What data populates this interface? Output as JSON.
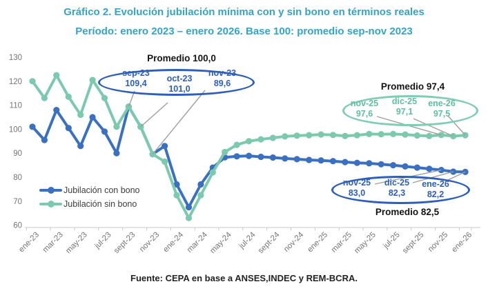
{
  "title": "Gráfico 2. Evolución jubilación mínima con y sin bono en términos reales",
  "subtitle": "Período: enero 2023 – enero 2026. Base 100: promedio sep-nov 2023",
  "source": "Fuente: CEPA en base a ANSES,INDEC y REM-BCRA.",
  "colors": {
    "title": "#35A3C8",
    "con_bono": "#3A70C2",
    "sin_bono": "#7BCAAE",
    "annotation_blue": "#2D5FBA",
    "annotation_green": "#5FBEA1",
    "ellipse_green": "#7FCDB2",
    "axis_text": "#757575",
    "axis_line": "#C9C9C9",
    "leader_line": "#9E9E9E"
  },
  "annotations": {
    "base_period": {
      "title": "Promedio 100,0",
      "points": [
        {
          "label": "sep-23",
          "value": "109,4"
        },
        {
          "label": "oct-23",
          "value": "101,0"
        },
        {
          "label": "nov-23",
          "value": "89,6"
        }
      ]
    },
    "sin_bono_end": {
      "title": "Promedio 97,4",
      "points": [
        {
          "label": "nov-25",
          "value": "97,6"
        },
        {
          "label": "dic-25",
          "value": "97,1"
        },
        {
          "label": "ene-26",
          "value": "97,5"
        }
      ]
    },
    "con_bono_end": {
      "title": "Promedio 82,5",
      "points": [
        {
          "label": "nov-25",
          "value": "83,0"
        },
        {
          "label": "dic-25",
          "value": "82,3"
        },
        {
          "label": "ene-26",
          "value": "82,2"
        }
      ]
    }
  },
  "chart_data": {
    "type": "line",
    "title": "Gráfico 2. Evolución jubilación mínima con y sin bono en términos reales",
    "subtitle": "Período: enero 2023 – enero 2026. Base 100: promedio sep-nov 2023",
    "xlabel": "",
    "ylabel": "",
    "ylim": [
      60,
      130
    ],
    "ytick_step": 10,
    "grid": false,
    "legend_position": "inside-left",
    "x": [
      "ene-23",
      "feb-23",
      "mar-23",
      "abr-23",
      "may-23",
      "jun-23",
      "jul-23",
      "ago-23",
      "sep-23",
      "oct-23",
      "nov-23",
      "dic-23",
      "ene-24",
      "feb-24",
      "mar-24",
      "abr-24",
      "may-24",
      "jun-24",
      "jul-24",
      "ago-24",
      "sep-24",
      "oct-24",
      "nov-24",
      "dic-24",
      "ene-25",
      "feb-25",
      "mar-25",
      "abr-25",
      "may-25",
      "jun-25",
      "jul-25",
      "ago-25",
      "sep-25",
      "oct-25",
      "nov-25",
      "dic-25",
      "ene-26"
    ],
    "x_tick_labels": [
      "ene-23",
      "mar-23",
      "may-23",
      "jul-23",
      "sept-23",
      "nov-23",
      "ene-24",
      "mar-24",
      "may-24",
      "jul-24",
      "sept-24",
      "nov-24",
      "ene-25",
      "mar-25",
      "may-25",
      "jul-25",
      "sept-25",
      "nov-25",
      "ene-26"
    ],
    "series": [
      {
        "name": "Jubilación con bono",
        "color": "#3A70C2",
        "values": [
          101,
          95.5,
          108,
          100.5,
          93,
          105,
          99,
          90,
          109.4,
          101.0,
          89.6,
          93,
          77,
          67.5,
          77,
          84,
          88.3,
          88.7,
          88.9,
          88.5,
          88.2,
          87.8,
          87.5,
          87.2,
          87.0,
          86.7,
          86.3,
          86.0,
          85.8,
          85.4,
          85.0,
          84.5,
          84.0,
          83.5,
          83.0,
          82.3,
          82.2
        ]
      },
      {
        "name": "Jubilación sin bono",
        "color": "#7BCAAE",
        "values": [
          120,
          113,
          122.5,
          113.5,
          106,
          120.5,
          113,
          101,
          109.4,
          101.0,
          89.6,
          86.5,
          72.5,
          63,
          72.5,
          82,
          90.5,
          93.5,
          95.0,
          95.8,
          96.4,
          97.0,
          97.3,
          97.5,
          97.8,
          97.6,
          97.2,
          97.5,
          98.0,
          97.9,
          98.0,
          97.8,
          97.4,
          97.2,
          97.6,
          97.1,
          97.5
        ]
      }
    ]
  }
}
